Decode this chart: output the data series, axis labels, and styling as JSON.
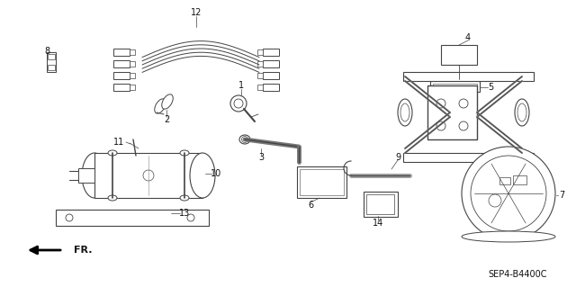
{
  "bg_color": "#ffffff",
  "lc": "#444444",
  "tc": "#111111",
  "part_code": "SEP4-B4400C",
  "figsize": [
    6.4,
    3.19
  ],
  "dpi": 100
}
